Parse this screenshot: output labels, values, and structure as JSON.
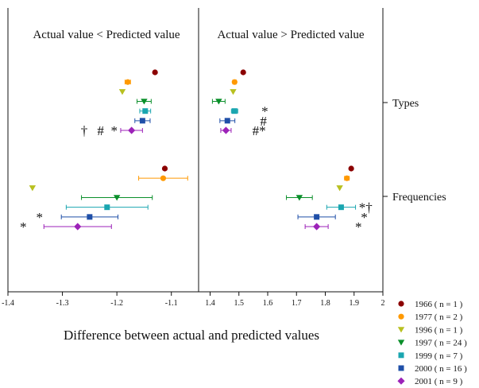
{
  "chart_data": {
    "type": "scatter",
    "xlabel": "Difference between actual and predicted values",
    "panels": [
      {
        "title": "Actual value < Predicted value",
        "xlim": [
          -1.4,
          -1.05
        ],
        "ticks": [
          "-1.4",
          "-1.3",
          "-1.2",
          "-1.1"
        ],
        "tick_values": [
          -1.4,
          -1.3,
          -1.2,
          -1.1
        ]
      },
      {
        "title": "Actual value > Predicted value",
        "xlim": [
          1.36,
          2.0
        ],
        "ticks": [
          "1.4",
          "1.5",
          "1.6",
          "1.7",
          "1.8",
          "1.9",
          "2"
        ],
        "tick_values": [
          1.4,
          1.5,
          1.6,
          1.7,
          1.8,
          1.9,
          2.0
        ]
      }
    ],
    "categories": [
      "Types",
      "Frequencies"
    ],
    "series": [
      {
        "name": "1966 ( n = 1 )",
        "color": "#8b0000",
        "marker": "circle"
      },
      {
        "name": "1977 ( n = 2 )",
        "color": "#ff9900",
        "marker": "circle"
      },
      {
        "name": "1996 ( n = 1 )",
        "color": "#b8c020",
        "marker": "triangle-down"
      },
      {
        "name": "1997 ( n = 24 )",
        "color": "#0a8f2a",
        "marker": "triangle-down"
      },
      {
        "name": "1999 ( n = 7 )",
        "color": "#1aa6b0",
        "marker": "square"
      },
      {
        "name": "2000 ( n = 16 )",
        "color": "#1f4fa8",
        "marker": "square"
      },
      {
        "name": "2001 ( n = 9 )",
        "color": "#9c22b8",
        "marker": "diamond"
      }
    ],
    "points": [
      {
        "panel": 0,
        "category": "Types",
        "series": 0,
        "x": -1.13
      },
      {
        "panel": 0,
        "category": "Types",
        "series": 1,
        "x": -1.18,
        "err": 0.005
      },
      {
        "panel": 0,
        "category": "Types",
        "series": 2,
        "x": -1.19
      },
      {
        "panel": 0,
        "category": "Types",
        "series": 3,
        "x": -1.15,
        "err": 0.013
      },
      {
        "panel": 0,
        "category": "Types",
        "series": 4,
        "x": -1.148,
        "err": 0.01
      },
      {
        "panel": 0,
        "category": "Types",
        "series": 5,
        "x": -1.153,
        "err": 0.014
      },
      {
        "panel": 0,
        "category": "Types",
        "series": 6,
        "x": -1.173,
        "err": 0.02
      },
      {
        "panel": 0,
        "category": "Frequencies",
        "series": 0,
        "x": -1.112
      },
      {
        "panel": 0,
        "category": "Frequencies",
        "series": 1,
        "x": -1.115,
        "err": 0.045
      },
      {
        "panel": 0,
        "category": "Frequencies",
        "series": 2,
        "x": -1.355
      },
      {
        "panel": 0,
        "category": "Frequencies",
        "series": 3,
        "x": -1.2,
        "err": 0.065
      },
      {
        "panel": 0,
        "category": "Frequencies",
        "series": 4,
        "x": -1.218,
        "err": 0.075
      },
      {
        "panel": 0,
        "category": "Frequencies",
        "series": 5,
        "x": -1.25,
        "err": 0.052
      },
      {
        "panel": 0,
        "category": "Frequencies",
        "series": 6,
        "x": -1.272,
        "err": 0.062
      },
      {
        "panel": 1,
        "category": "Types",
        "series": 0,
        "x": 1.515
      },
      {
        "panel": 1,
        "category": "Types",
        "series": 1,
        "x": 1.485,
        "err": 0.006
      },
      {
        "panel": 1,
        "category": "Types",
        "series": 2,
        "x": 1.48
      },
      {
        "panel": 1,
        "category": "Types",
        "series": 3,
        "x": 1.43,
        "err": 0.022
      },
      {
        "panel": 1,
        "category": "Types",
        "series": 4,
        "x": 1.485,
        "err": 0.011
      },
      {
        "panel": 1,
        "category": "Types",
        "series": 5,
        "x": 1.46,
        "err": 0.026
      },
      {
        "panel": 1,
        "category": "Types",
        "series": 6,
        "x": 1.455,
        "err": 0.018
      },
      {
        "panel": 1,
        "category": "Frequencies",
        "series": 0,
        "x": 1.89
      },
      {
        "panel": 1,
        "category": "Frequencies",
        "series": 1,
        "x": 1.875,
        "err": 0.008
      },
      {
        "panel": 1,
        "category": "Frequencies",
        "series": 2,
        "x": 1.85
      },
      {
        "panel": 1,
        "category": "Frequencies",
        "series": 3,
        "x": 1.71,
        "err": 0.045
      },
      {
        "panel": 1,
        "category": "Frequencies",
        "series": 4,
        "x": 1.855,
        "err": 0.05
      },
      {
        "panel": 1,
        "category": "Frequencies",
        "series": 5,
        "x": 1.77,
        "err": 0.065
      },
      {
        "panel": 1,
        "category": "Frequencies",
        "series": 6,
        "x": 1.77,
        "err": 0.04
      }
    ],
    "annotations": [
      {
        "panel": 0,
        "category": "Types",
        "series": 6,
        "text": "†",
        "x": -1.26
      },
      {
        "panel": 0,
        "category": "Types",
        "series": 6,
        "text": "#",
        "x": -1.23
      },
      {
        "panel": 0,
        "category": "Types",
        "series": 6,
        "text": "*",
        "x": -1.205
      },
      {
        "panel": 1,
        "category": "Types",
        "series": 4,
        "text": "*",
        "x": 1.59
      },
      {
        "panel": 1,
        "category": "Types",
        "series": 5,
        "text": "#",
        "x": 1.585
      },
      {
        "panel": 1,
        "category": "Types",
        "series": 6,
        "text": "#*",
        "x": 1.57
      },
      {
        "panel": 0,
        "category": "Frequencies",
        "series": 5,
        "text": "*",
        "x": -1.342
      },
      {
        "panel": 0,
        "category": "Frequencies",
        "series": 6,
        "text": "*",
        "x": -1.372
      },
      {
        "panel": 1,
        "category": "Frequencies",
        "series": 4,
        "text": "*†",
        "x": 1.94
      },
      {
        "panel": 1,
        "category": "Frequencies",
        "series": 5,
        "text": "*",
        "x": 1.935
      },
      {
        "panel": 1,
        "category": "Frequencies",
        "series": 6,
        "text": "*",
        "x": 1.915
      }
    ]
  }
}
